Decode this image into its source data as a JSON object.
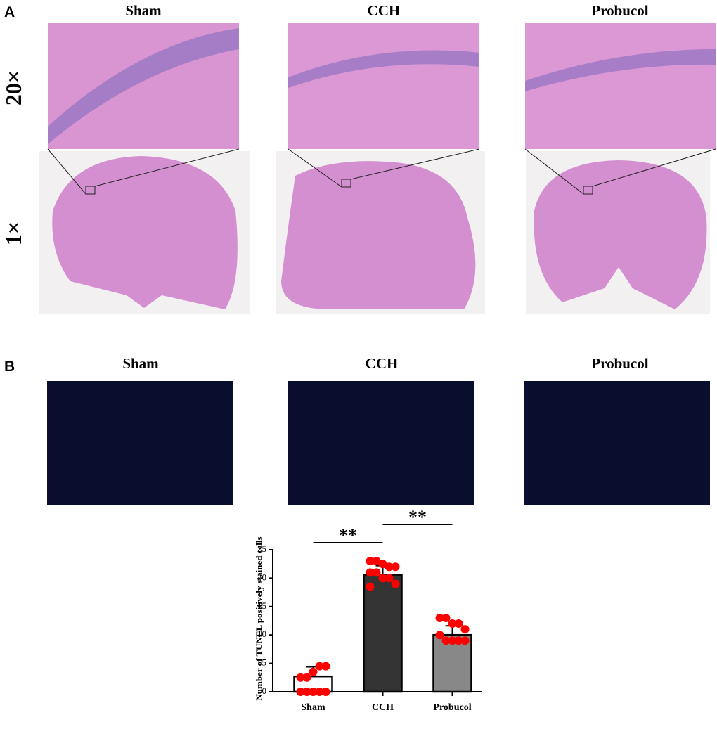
{
  "panel_a": {
    "label": "A",
    "columns": [
      "Sham",
      "CCH",
      "Probucol"
    ],
    "rows": [
      "20×",
      "1×"
    ]
  },
  "panel_b": {
    "label": "B",
    "columns": [
      "Sham",
      "CCH",
      "Probucol"
    ]
  },
  "chart_data": {
    "type": "bar",
    "ylabel": "Number of TUNEL positively stained cells",
    "categories": [
      "Sham",
      "CCH",
      "Probucol"
    ],
    "values": [
      2.7,
      20.6,
      10.0
    ],
    "errors": [
      1.7,
      1.6,
      1.6
    ],
    "colors": [
      "#ffffff",
      "#333333",
      "#888888"
    ],
    "point_color": "#ff0000",
    "points": [
      [
        0,
        0,
        0,
        0,
        0,
        2.5,
        2.5,
        3.5,
        4.5,
        4.5
      ],
      [
        23,
        23,
        22.5,
        22,
        22,
        21,
        21,
        20,
        20,
        19,
        18.5
      ],
      [
        13,
        13,
        12,
        12,
        11,
        10,
        9,
        9,
        9,
        9
      ]
    ],
    "annotations": [
      "**",
      "**"
    ],
    "ylim": [
      0,
      25
    ],
    "yticks": [
      0,
      5,
      10,
      15,
      20,
      25
    ]
  }
}
